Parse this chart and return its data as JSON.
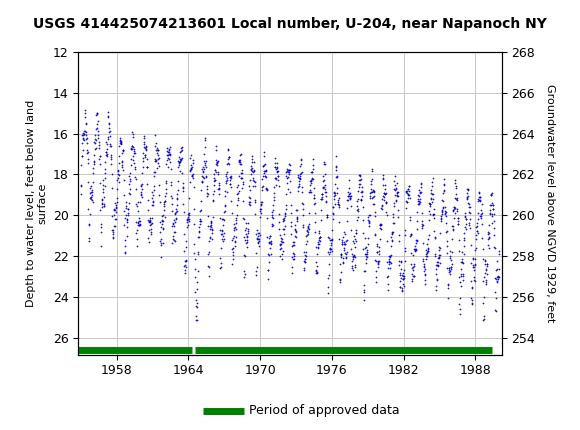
{
  "title": "USGS 414425074213601 Local number, U-204, near Napanoch NY",
  "ylabel_left": "Depth to water level, feet below land\nsurface",
  "ylabel_right": "Groundwater level above NGVD 1929, feet",
  "ylim_left": [
    12,
    26.8
  ],
  "ylim_right": [
    253.2,
    268
  ],
  "xlim": [
    1954.8,
    1990.2
  ],
  "yticks_left": [
    12,
    14,
    16,
    18,
    20,
    22,
    24,
    26
  ],
  "yticks_right": [
    268,
    266,
    264,
    262,
    260,
    258,
    256,
    254
  ],
  "xticks": [
    1958,
    1964,
    1970,
    1976,
    1982,
    1988
  ],
  "header_color": "#006B3C",
  "data_color": "#0000CC",
  "approved_color": "#008000",
  "legend_label": "Period of approved data",
  "background_color": "#ffffff",
  "grid_color": "#c8c8c8",
  "plot_bg_color": "#ffffff",
  "title_fontsize": 10,
  "tick_fontsize": 9,
  "label_fontsize": 8
}
